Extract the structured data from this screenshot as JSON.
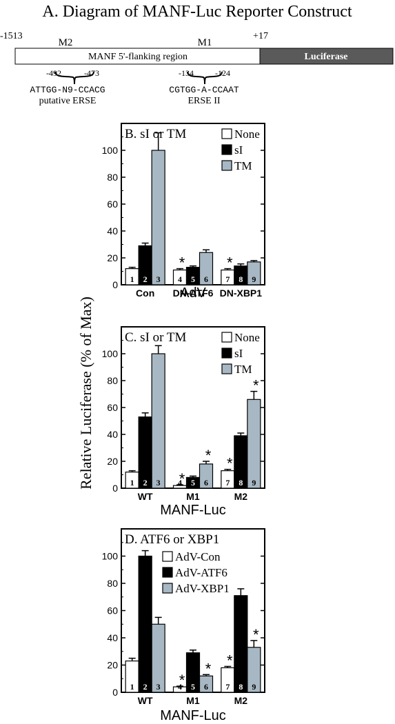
{
  "construct": {
    "title": "A. Diagram of MANF-Luc Reporter Construct",
    "pos_start": "-1513",
    "pos_end": "+17",
    "m2_label": "M2",
    "m1_label": "M1",
    "region_label": "MANF 5'-flanking region",
    "luciferase_label": "Luciferase",
    "erse1_range_a": "-492",
    "erse1_range_b": "-473",
    "erse1_seq": "ATTGG-N9-CCACG",
    "erse1_name": "putative ERSE",
    "erse2_range_a": "-134",
    "erse2_range_b": "-124",
    "erse2_seq": "CGTGG-A-CCAAT",
    "erse2_name": "ERSE II"
  },
  "y_axis_label": "Relative Luciferase (% of Max)",
  "colors": {
    "none": "#ffffff",
    "si": "#000000",
    "tm": "#a7b8c4"
  },
  "chart_data": [
    {
      "type": "bar",
      "title": "B. sI or TM",
      "xlabel": "AdV",
      "ylim": [
        0,
        120
      ],
      "yticks": [
        "0",
        "20",
        "40",
        "60",
        "80",
        "100"
      ],
      "categories": [
        "Con",
        "DN-ATF6",
        "DN-XBP1"
      ],
      "series": [
        {
          "name": "None",
          "values": [
            12,
            11,
            11
          ],
          "errors": [
            1,
            1,
            1
          ],
          "bar_numbers": [
            "1",
            "4",
            "7"
          ]
        },
        {
          "name": "sI",
          "values": [
            29,
            13,
            14
          ],
          "errors": [
            2,
            1,
            1.5
          ],
          "bar_numbers": [
            "2",
            "5",
            "8"
          ]
        },
        {
          "name": "TM",
          "values": [
            100,
            24,
            17
          ],
          "errors": [
            13,
            2,
            1
          ],
          "bar_numbers": [
            "3",
            "6",
            "9"
          ]
        }
      ],
      "significance": [
        [
          false,
          true,
          true
        ],
        [
          false,
          false,
          false
        ],
        [
          false,
          false,
          false
        ]
      ]
    },
    {
      "type": "bar",
      "title": "C. sI or TM",
      "xlabel": "MANF-Luc",
      "ylim": [
        0,
        120
      ],
      "yticks": [
        "0",
        "20",
        "40",
        "60",
        "80",
        "100"
      ],
      "categories": [
        "WT",
        "M1",
        "M2"
      ],
      "series": [
        {
          "name": "None",
          "values": [
            12,
            2,
            13
          ],
          "errors": [
            1,
            0.5,
            1
          ],
          "bar_numbers": [
            "1",
            "4",
            "7"
          ]
        },
        {
          "name": "sI",
          "values": [
            53,
            8,
            39
          ],
          "errors": [
            3,
            1,
            2
          ],
          "bar_numbers": [
            "2",
            "5",
            "8"
          ]
        },
        {
          "name": "TM",
          "values": [
            100,
            18,
            66
          ],
          "errors": [
            6,
            2,
            6
          ],
          "bar_numbers": [
            "3",
            "6",
            "9"
          ]
        }
      ],
      "significance": [
        [
          false,
          true,
          true
        ],
        [
          false,
          false,
          false
        ],
        [
          false,
          true,
          true
        ]
      ]
    },
    {
      "type": "bar",
      "title": "D. ATF6 or XBP1",
      "xlabel": "MANF-Luc",
      "ylim": [
        0,
        120
      ],
      "yticks": [
        "0",
        "20",
        "40",
        "60",
        "80",
        "100"
      ],
      "categories": [
        "WT",
        "M1",
        "M2"
      ],
      "series": [
        {
          "name": "AdV-Con",
          "values": [
            23,
            4,
            18
          ],
          "errors": [
            2,
            0.5,
            1
          ],
          "bar_numbers": [
            "1",
            "4",
            "7"
          ]
        },
        {
          "name": "AdV-ATF6",
          "values": [
            100,
            29,
            71
          ],
          "errors": [
            4,
            2,
            5
          ],
          "bar_numbers": [
            "2",
            "5",
            "8"
          ]
        },
        {
          "name": "AdV-XBP1",
          "values": [
            50,
            12,
            33
          ],
          "errors": [
            5,
            1,
            5
          ],
          "bar_numbers": [
            "3",
            "6",
            "9"
          ]
        }
      ],
      "significance": [
        [
          false,
          true,
          true
        ],
        [
          false,
          false,
          false
        ],
        [
          false,
          true,
          true
        ]
      ]
    }
  ]
}
